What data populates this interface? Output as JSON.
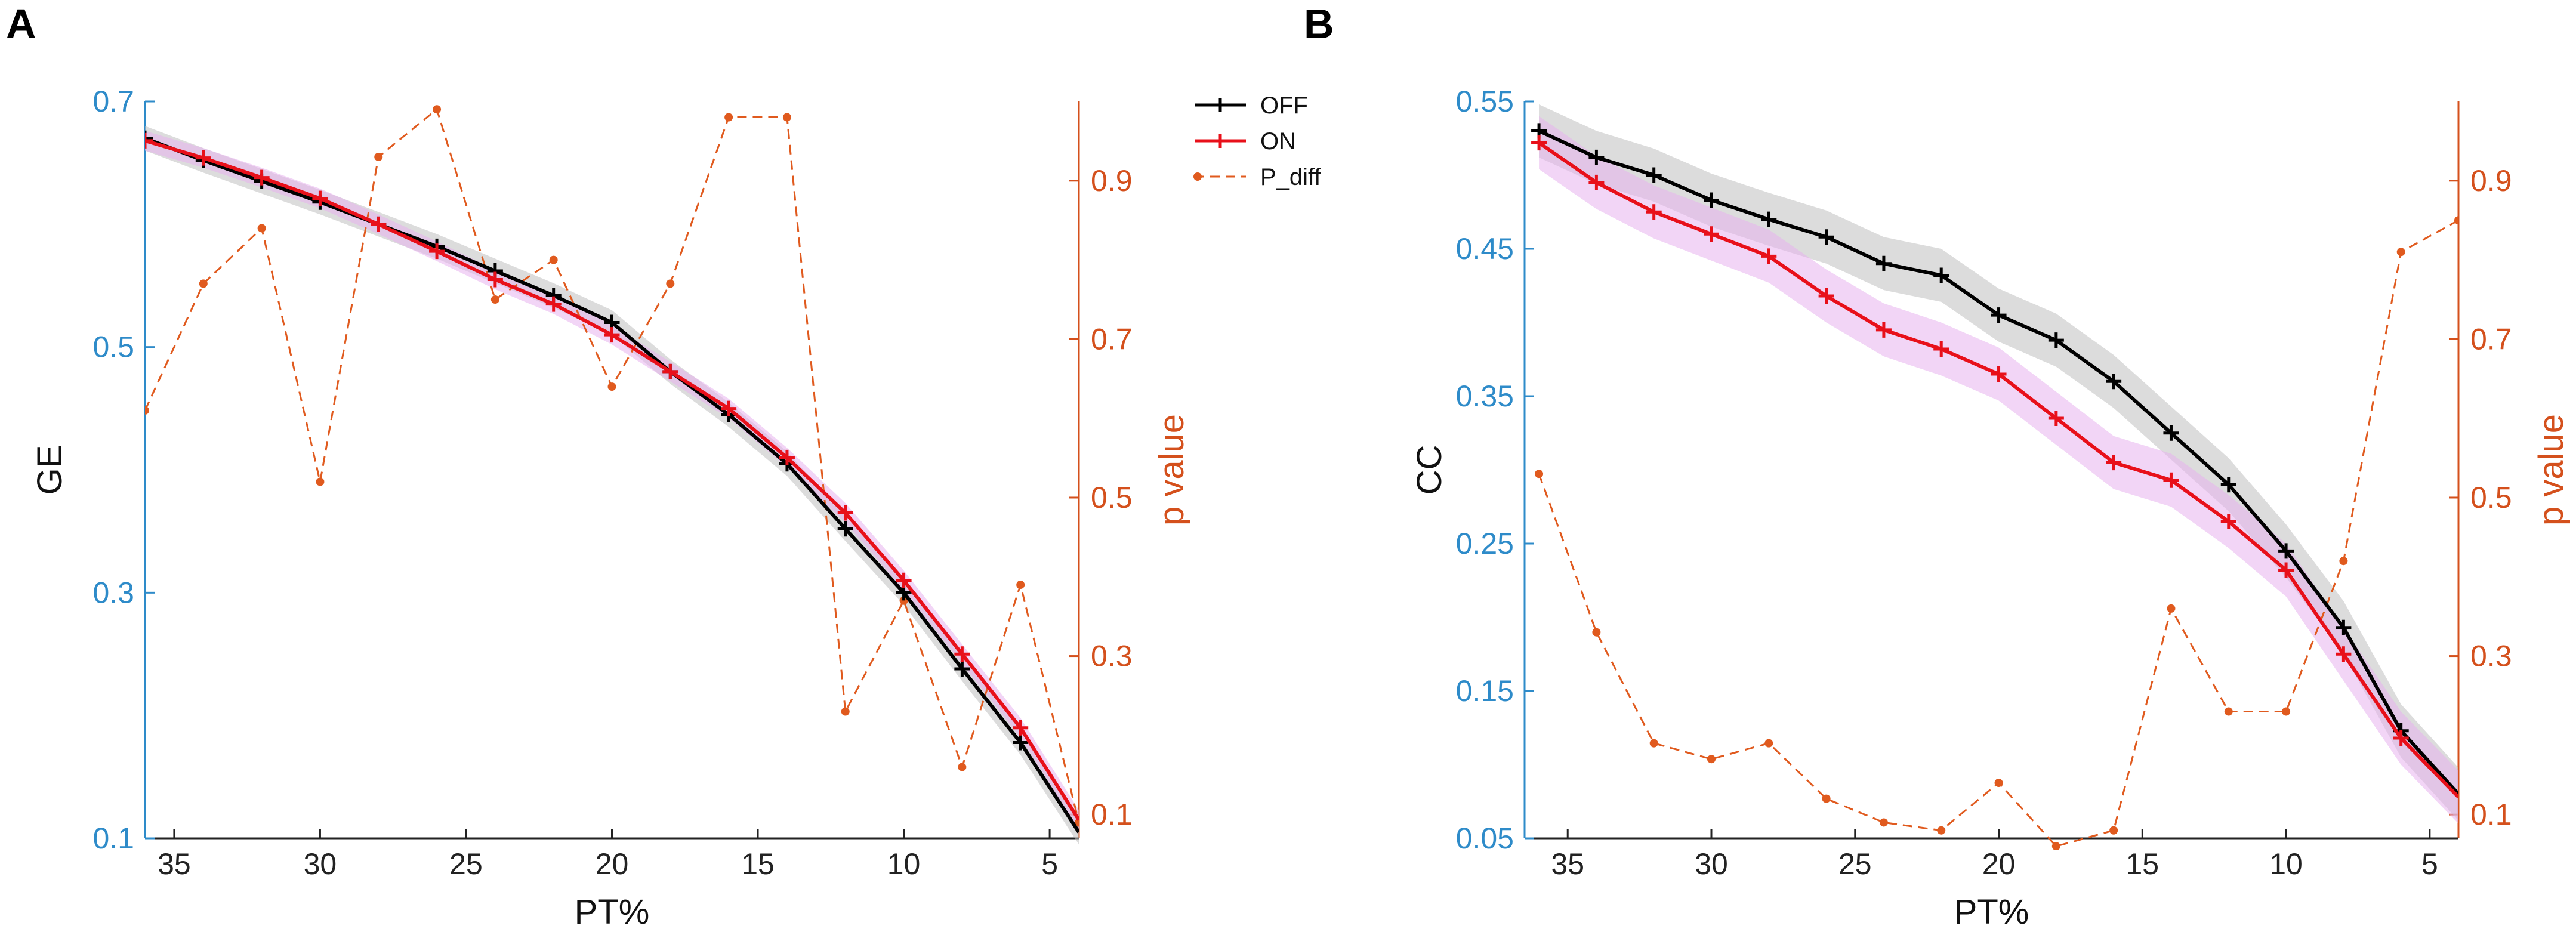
{
  "colors": {
    "off": "#000000",
    "on": "#e8101a",
    "p_diff": "#e05a1e",
    "left_axis": "#2e8bc9",
    "right_axis": "#d4501c",
    "off_band": "#c0c0c0",
    "on_band": "#e8b2ee"
  },
  "legend": {
    "entries": [
      "OFF",
      "ON",
      "P_diff"
    ]
  },
  "chart_data": [
    {
      "panel": "A",
      "type": "line",
      "xlabel": "PT%",
      "ylabel": "GE",
      "y2label": "p value",
      "xlim": [
        36,
        4
      ],
      "ylim": [
        0.1,
        0.7
      ],
      "y2lim": [
        0.07,
        1.0
      ],
      "xticks": [
        35,
        30,
        25,
        20,
        15,
        10,
        5
      ],
      "yticks": [
        0.1,
        0.3,
        0.5,
        0.7
      ],
      "y2ticks": [
        0.1,
        0.3,
        0.5,
        0.7,
        0.9
      ],
      "ytick_labels": [
        "0.1",
        "0.3",
        "0.5",
        "0.7"
      ],
      "y2tick_labels": [
        "0.1",
        "0.3",
        "0.5",
        "0.7",
        "0.9"
      ],
      "series": [
        {
          "name": "OFF",
          "axis": "left",
          "marker": "plus",
          "band": 0.01,
          "x": [
            36,
            34,
            32,
            30,
            28,
            26,
            24,
            22,
            20,
            18,
            16,
            14,
            12,
            10,
            8,
            6,
            4
          ],
          "values": [
            0.67,
            0.652,
            0.635,
            0.618,
            0.6,
            0.582,
            0.562,
            0.542,
            0.52,
            0.48,
            0.445,
            0.405,
            0.352,
            0.3,
            0.238,
            0.178,
            0.105
          ]
        },
        {
          "name": "ON",
          "axis": "left",
          "marker": "plus",
          "band": 0.008,
          "x": [
            36,
            34,
            32,
            30,
            28,
            26,
            24,
            22,
            20,
            18,
            16,
            14,
            12,
            10,
            8,
            6,
            4
          ],
          "values": [
            0.668,
            0.654,
            0.638,
            0.621,
            0.6,
            0.578,
            0.555,
            0.535,
            0.51,
            0.48,
            0.45,
            0.41,
            0.365,
            0.31,
            0.25,
            0.19,
            0.115
          ]
        },
        {
          "name": "P_diff",
          "axis": "right",
          "marker": "dot",
          "dashed": true,
          "x": [
            36,
            34,
            32,
            30,
            28,
            26,
            24,
            22,
            20,
            18,
            16,
            14,
            12,
            10,
            8,
            6,
            4
          ],
          "values": [
            0.61,
            0.77,
            0.84,
            0.52,
            0.93,
            0.99,
            0.75,
            0.8,
            0.64,
            0.77,
            0.98,
            0.98,
            0.23,
            0.37,
            0.16,
            0.39,
            0.09
          ]
        }
      ]
    },
    {
      "panel": "B",
      "type": "line",
      "xlabel": "PT%",
      "ylabel": "CC",
      "y2label": "p value",
      "xlim": [
        36.5,
        4
      ],
      "ylim": [
        0.05,
        0.55
      ],
      "y2lim": [
        0.07,
        1.0
      ],
      "xticks": [
        35,
        30,
        25,
        20,
        15,
        10,
        5
      ],
      "yticks": [
        0.05,
        0.15,
        0.25,
        0.35,
        0.45,
        0.55
      ],
      "y2ticks": [
        0.1,
        0.3,
        0.5,
        0.7,
        0.9
      ],
      "ytick_labels": [
        "0.05",
        "0.15",
        "0.25",
        "0.35",
        "0.45",
        "0.55"
      ],
      "y2tick_labels": [
        "0.1",
        "0.3",
        "0.5",
        "0.7",
        "0.9"
      ],
      "series": [
        {
          "name": "OFF",
          "axis": "left",
          "marker": "plus",
          "band": 0.018,
          "x": [
            36,
            34,
            32,
            30,
            28,
            26,
            24,
            22,
            20,
            18,
            16,
            14,
            12,
            10,
            8,
            6,
            4
          ],
          "values": [
            0.53,
            0.512,
            0.5,
            0.483,
            0.47,
            0.458,
            0.44,
            0.432,
            0.405,
            0.388,
            0.36,
            0.325,
            0.29,
            0.245,
            0.193,
            0.123,
            0.08
          ]
        },
        {
          "name": "ON",
          "axis": "left",
          "marker": "plus",
          "band": 0.018,
          "x": [
            36,
            34,
            32,
            30,
            28,
            26,
            24,
            22,
            20,
            18,
            16,
            14,
            12,
            10,
            8,
            6,
            4
          ],
          "values": [
            0.522,
            0.495,
            0.475,
            0.46,
            0.445,
            0.418,
            0.395,
            0.382,
            0.365,
            0.335,
            0.305,
            0.293,
            0.265,
            0.232,
            0.175,
            0.118,
            0.078
          ]
        },
        {
          "name": "P_diff",
          "axis": "right",
          "marker": "dot",
          "dashed": true,
          "x": [
            36,
            34,
            32,
            30,
            28,
            26,
            24,
            22,
            20,
            18,
            16,
            14,
            12,
            10,
            8,
            6,
            4
          ],
          "values": [
            0.53,
            0.33,
            0.19,
            0.17,
            0.19,
            0.12,
            0.09,
            0.08,
            0.14,
            0.06,
            0.08,
            0.36,
            0.23,
            0.23,
            0.42,
            0.81,
            0.85
          ]
        }
      ]
    }
  ]
}
